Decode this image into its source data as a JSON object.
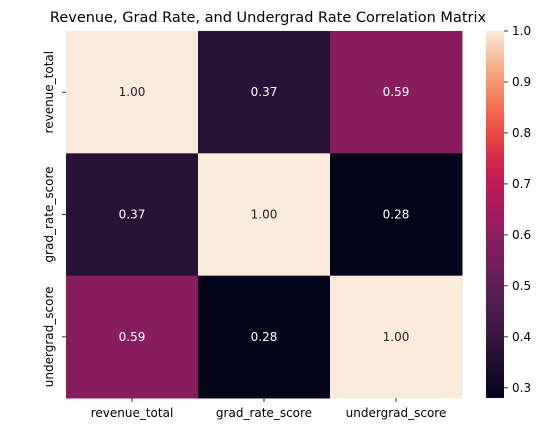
{
  "chart_data": {
    "type": "heatmap",
    "title": "Revenue, Grad Rate, and Undergrad Rate Correlation Matrix",
    "x_categories": [
      "revenue_total",
      "grad_rate_score",
      "undergrad_score"
    ],
    "y_categories": [
      "revenue_total",
      "grad_rate_score",
      "undergrad_score"
    ],
    "values": [
      [
        1.0,
        0.37,
        0.59
      ],
      [
        0.37,
        1.0,
        0.28
      ],
      [
        0.59,
        0.28,
        1.0
      ]
    ],
    "cell_labels": [
      [
        "1.00",
        "0.37",
        "0.59"
      ],
      [
        "0.37",
        "1.00",
        "0.28"
      ],
      [
        "0.59",
        "0.28",
        "1.00"
      ]
    ],
    "colormap": "rocket",
    "colorbar": {
      "range": [
        0.28,
        1.0
      ],
      "ticks": [
        0.3,
        0.4,
        0.5,
        0.6,
        0.7,
        0.8,
        0.9,
        1.0
      ],
      "tick_labels": [
        "0.3",
        "0.4",
        "0.5",
        "0.6",
        "0.7",
        "0.8",
        "0.9",
        "1.0"
      ]
    }
  }
}
